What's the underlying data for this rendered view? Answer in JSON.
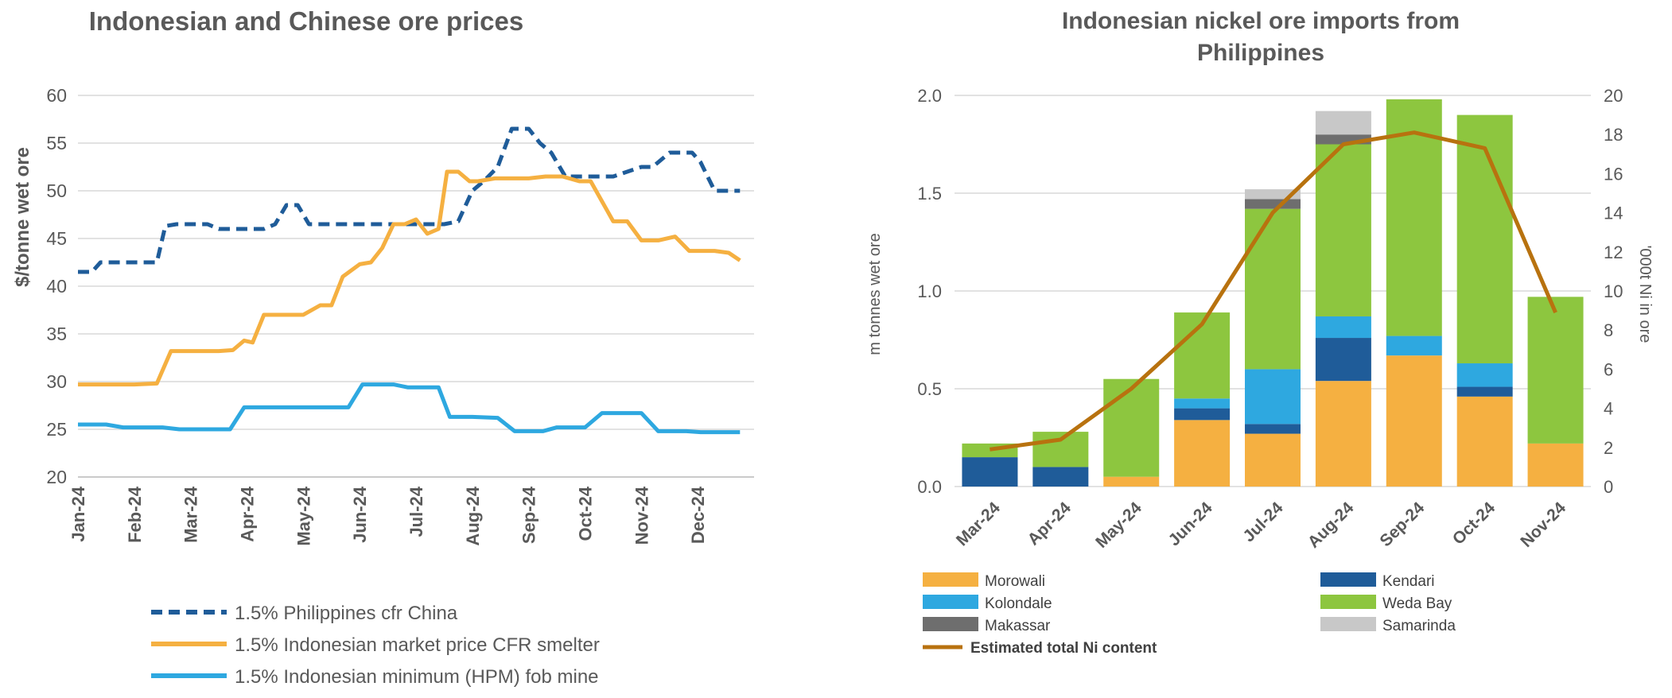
{
  "chart_data": [
    {
      "type": "line",
      "title": "Indonesian and Chinese ore prices",
      "ylabel": "$/tonne wet ore",
      "xlabel": "",
      "ylim": [
        20,
        60
      ],
      "yticks": [
        20,
        25,
        30,
        35,
        40,
        45,
        50,
        55,
        60
      ],
      "xlim": [
        0,
        12
      ],
      "categories": [
        "Jan-24",
        "Feb-24",
        "Mar-24",
        "Apr-24",
        "May-24",
        "Jun-24",
        "Jul-24",
        "Aug-24",
        "Sep-24",
        "Oct-24",
        "Nov-24",
        "Dec-24"
      ],
      "grid": "horizontal",
      "legend_position": "bottom",
      "series": [
        {
          "name": "1.5% Philippines cfr China",
          "color": "#1F5C99",
          "dash": true,
          "x": [
            0,
            0.25,
            0.4,
            0.75,
            1.0,
            1.4,
            1.55,
            1.75,
            2.0,
            2.3,
            2.5,
            2.75,
            3.0,
            3.3,
            3.5,
            3.7,
            3.9,
            4.1,
            4.25,
            4.55,
            5.0,
            5.5,
            6.0,
            6.5,
            6.75,
            7.0,
            7.2,
            7.45,
            7.7,
            8.0,
            8.2,
            8.4,
            8.65,
            8.9,
            9.1,
            9.5,
            10.0,
            10.2,
            10.5,
            10.9,
            11.05,
            11.3,
            11.5,
            11.75
          ],
          "y": [
            41.5,
            41.5,
            42.5,
            42.5,
            42.5,
            42.5,
            46.3,
            46.5,
            46.5,
            46.5,
            46.0,
            46.0,
            46.0,
            46.0,
            46.5,
            48.5,
            48.5,
            46.5,
            46.5,
            46.5,
            46.5,
            46.5,
            46.5,
            46.5,
            46.8,
            50.0,
            51.0,
            52.5,
            56.5,
            56.5,
            55.0,
            54.0,
            51.5,
            51.5,
            51.5,
            51.5,
            52.5,
            52.5,
            54.0,
            54.0,
            53.0,
            50.0,
            50.0,
            50.0
          ]
        },
        {
          "name": "1.5% Indonesian market price CFR smelter",
          "color": "#F5B041",
          "dash": false,
          "x": [
            0,
            0.5,
            1.0,
            1.4,
            1.65,
            2.0,
            2.5,
            2.75,
            2.95,
            3.1,
            3.3,
            3.5,
            3.8,
            4.0,
            4.3,
            4.5,
            4.7,
            5.0,
            5.2,
            5.4,
            5.6,
            5.8,
            6.0,
            6.2,
            6.4,
            6.55,
            6.75,
            6.95,
            7.1,
            7.4,
            7.6,
            8.0,
            8.3,
            8.6,
            8.9,
            9.1,
            9.5,
            9.75,
            10.0,
            10.3,
            10.6,
            10.85,
            11.05,
            11.3,
            11.55,
            11.75
          ],
          "y": [
            29.7,
            29.7,
            29.7,
            29.8,
            33.2,
            33.2,
            33.2,
            33.3,
            34.3,
            34.1,
            37.0,
            37.0,
            37.0,
            37.0,
            38.0,
            38.0,
            41.0,
            42.3,
            42.5,
            44.0,
            46.5,
            46.5,
            47.0,
            45.5,
            46.0,
            52.0,
            52.0,
            51.0,
            51.0,
            51.3,
            51.3,
            51.3,
            51.5,
            51.5,
            51.0,
            51.0,
            46.8,
            46.8,
            44.8,
            44.8,
            45.2,
            43.7,
            43.7,
            43.7,
            43.5,
            42.7
          ]
        },
        {
          "name": "1.5% Indonesian minimum (HPM) fob mine",
          "color": "#2EA8E0",
          "dash": false,
          "x": [
            0,
            0.5,
            0.8,
            1.0,
            1.5,
            1.8,
            2.0,
            2.7,
            2.95,
            3.5,
            3.8,
            4.0,
            4.5,
            4.8,
            5.05,
            5.6,
            5.85,
            6.0,
            6.4,
            6.6,
            7.0,
            7.45,
            7.75,
            8.0,
            8.25,
            8.5,
            8.75,
            9.0,
            9.3,
            9.5,
            9.75,
            10.0,
            10.3,
            10.8,
            11.05,
            11.5,
            11.75
          ],
          "y": [
            25.5,
            25.5,
            25.2,
            25.2,
            25.2,
            25.0,
            25.0,
            25.0,
            27.3,
            27.3,
            27.3,
            27.3,
            27.3,
            27.3,
            29.7,
            29.7,
            29.4,
            29.4,
            29.4,
            26.3,
            26.3,
            26.2,
            24.8,
            24.8,
            24.8,
            25.2,
            25.2,
            25.2,
            26.7,
            26.7,
            26.7,
            26.7,
            24.8,
            24.8,
            24.7,
            24.7,
            24.7
          ]
        }
      ]
    },
    {
      "type": "bar",
      "stacked": true,
      "title": "Indonesian nickel ore imports from Philippines",
      "ylabel": "m tonnes wet ore",
      "y2label": "'000t Ni in ore",
      "ylim": [
        0,
        2.0
      ],
      "yticks": [
        "0.0",
        "0.5",
        "1.0",
        "1.5",
        "2.0"
      ],
      "y2lim": [
        0,
        20
      ],
      "y2ticks": [
        "0",
        "2",
        "4",
        "6",
        "8",
        "10",
        "12",
        "14",
        "16",
        "18",
        "20"
      ],
      "categories": [
        "Mar-24",
        "Apr-24",
        "May-24",
        "Jun-24",
        "Jul-24",
        "Aug-24",
        "Sep-24",
        "Oct-24",
        "Nov-24"
      ],
      "legend_position": "bottom",
      "series": [
        {
          "name": "Morowali",
          "color": "#F5B041",
          "values": [
            0.0,
            0.0,
            0.05,
            0.34,
            0.27,
            0.54,
            0.67,
            0.46,
            0.22
          ]
        },
        {
          "name": "Kendari",
          "color": "#1F5C99",
          "values": [
            0.15,
            0.1,
            0.0,
            0.06,
            0.05,
            0.22,
            0.0,
            0.05,
            0.0
          ]
        },
        {
          "name": "Kolondale",
          "color": "#2EA8E0",
          "values": [
            0.0,
            0.0,
            0.0,
            0.05,
            0.28,
            0.11,
            0.1,
            0.12,
            0.0
          ]
        },
        {
          "name": "Weda Bay",
          "color": "#8DC63F",
          "values": [
            0.07,
            0.18,
            0.5,
            0.44,
            0.82,
            0.88,
            1.21,
            1.27,
            0.75
          ]
        },
        {
          "name": "Makassar",
          "color": "#6E6E6E",
          "values": [
            0.0,
            0.0,
            0.0,
            0.0,
            0.05,
            0.05,
            0.0,
            0.0,
            0.0
          ]
        },
        {
          "name": "Samarinda",
          "color": "#C8C8C8",
          "values": [
            0.0,
            0.0,
            0.0,
            0.0,
            0.05,
            0.12,
            0.0,
            0.0,
            0.0
          ]
        }
      ],
      "line_series": {
        "name": "Estimated total Ni content",
        "color": "#B8720F",
        "axis": "right",
        "values": [
          1.9,
          2.4,
          5.0,
          8.3,
          14.0,
          17.5,
          18.1,
          17.3,
          8.9
        ]
      }
    }
  ]
}
